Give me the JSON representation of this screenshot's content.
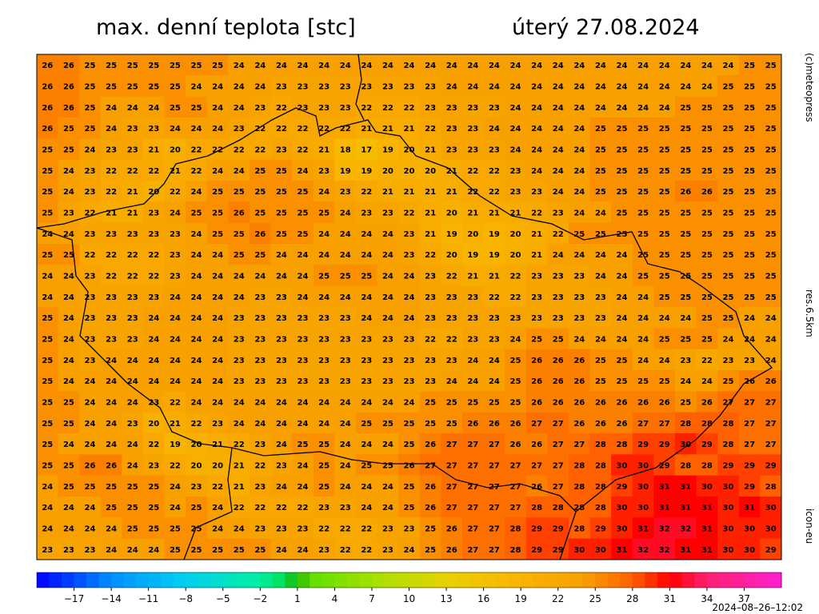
{
  "header": {
    "title": "max. denní teplota [stc]",
    "date": "úterý 27.08.2024"
  },
  "side_labels": [
    "(c)meteopress",
    "res.6.5km",
    "icon-eu"
  ],
  "timestamp": "2024–08–26–12:02",
  "legend": {
    "range": [
      -20,
      40
    ],
    "stops": [
      [
        -20,
        "#0000ff"
      ],
      [
        -14,
        "#0090ff"
      ],
      [
        -8,
        "#00d0f0"
      ],
      [
        -2,
        "#00f0a0"
      ],
      [
        0,
        "#00e050"
      ],
      [
        1,
        "#20b000"
      ],
      [
        2,
        "#60e000"
      ],
      [
        8,
        "#b0e000"
      ],
      [
        13,
        "#e8d000"
      ],
      [
        18,
        "#f8b800"
      ],
      [
        24,
        "#f8a000"
      ],
      [
        28,
        "#ff6000"
      ],
      [
        31,
        "#ff0000"
      ],
      [
        34,
        "#ff2070"
      ],
      [
        40,
        "#ff20d0"
      ]
    ],
    "ticks": [
      {
        "value": -17,
        "label": "−17"
      },
      {
        "value": -14,
        "label": "−14"
      },
      {
        "value": -11,
        "label": "−11"
      },
      {
        "value": -8,
        "label": "−8"
      },
      {
        "value": -5,
        "label": "−5"
      },
      {
        "value": -2,
        "label": "−2"
      },
      1,
      4,
      7,
      10,
      13,
      16,
      19,
      22,
      25,
      28,
      31,
      34,
      37
    ]
  },
  "grid": {
    "rows": [
      [
        26,
        26,
        25,
        25,
        25,
        25,
        25,
        25,
        25,
        24,
        24,
        24,
        24,
        24,
        24,
        24,
        24,
        24,
        24,
        24,
        24,
        24,
        24,
        24,
        24,
        24,
        24,
        24,
        24,
        24,
        24,
        24,
        24,
        25,
        25
      ],
      [
        26,
        26,
        25,
        25,
        25,
        25,
        25,
        24,
        24,
        24,
        24,
        23,
        23,
        23,
        23,
        23,
        23,
        23,
        23,
        24,
        24,
        24,
        24,
        24,
        24,
        24,
        24,
        24,
        24,
        24,
        24,
        24,
        25,
        25,
        25
      ],
      [
        26,
        26,
        25,
        24,
        24,
        24,
        25,
        25,
        24,
        24,
        23,
        22,
        23,
        23,
        23,
        22,
        22,
        22,
        23,
        23,
        23,
        23,
        24,
        24,
        24,
        24,
        24,
        24,
        24,
        24,
        25,
        25,
        25,
        25,
        25
      ],
      [
        26,
        25,
        25,
        24,
        23,
        23,
        24,
        24,
        24,
        23,
        22,
        22,
        22,
        22,
        22,
        21,
        21,
        21,
        22,
        23,
        23,
        24,
        24,
        24,
        24,
        24,
        25,
        25,
        25,
        25,
        25,
        25,
        25,
        25,
        25
      ],
      [
        25,
        25,
        24,
        23,
        23,
        21,
        20,
        22,
        22,
        22,
        22,
        23,
        22,
        21,
        18,
        17,
        19,
        20,
        21,
        23,
        23,
        23,
        24,
        24,
        24,
        24,
        25,
        25,
        25,
        25,
        25,
        25,
        25,
        25,
        25
      ],
      [
        25,
        24,
        23,
        22,
        22,
        22,
        21,
        22,
        24,
        24,
        25,
        25,
        24,
        23,
        19,
        19,
        20,
        20,
        20,
        21,
        22,
        22,
        23,
        24,
        24,
        24,
        25,
        25,
        25,
        25,
        25,
        25,
        25,
        25,
        25
      ],
      [
        25,
        24,
        23,
        22,
        21,
        20,
        22,
        24,
        25,
        25,
        25,
        25,
        25,
        24,
        23,
        22,
        21,
        21,
        21,
        21,
        22,
        22,
        23,
        23,
        24,
        24,
        25,
        25,
        25,
        25,
        26,
        26,
        25,
        25,
        25
      ],
      [
        25,
        23,
        22,
        21,
        21,
        23,
        24,
        25,
        25,
        26,
        25,
        25,
        25,
        25,
        24,
        23,
        23,
        22,
        21,
        20,
        21,
        21,
        21,
        22,
        23,
        24,
        24,
        25,
        25,
        25,
        25,
        25,
        25,
        25,
        25
      ],
      [
        24,
        24,
        23,
        23,
        23,
        23,
        23,
        24,
        25,
        25,
        26,
        25,
        25,
        24,
        24,
        24,
        24,
        23,
        21,
        19,
        20,
        19,
        20,
        21,
        22,
        25,
        25,
        25,
        25,
        25,
        25,
        25,
        25,
        25,
        25
      ],
      [
        25,
        25,
        22,
        22,
        22,
        22,
        23,
        24,
        24,
        25,
        25,
        24,
        24,
        24,
        24,
        24,
        24,
        23,
        22,
        20,
        19,
        19,
        20,
        21,
        24,
        24,
        24,
        24,
        25,
        25,
        25,
        25,
        25,
        25,
        25
      ],
      [
        24,
        24,
        23,
        22,
        22,
        22,
        23,
        24,
        24,
        24,
        24,
        24,
        24,
        25,
        25,
        25,
        24,
        24,
        23,
        22,
        21,
        21,
        22,
        23,
        23,
        23,
        24,
        24,
        25,
        25,
        25,
        25,
        25,
        25,
        25
      ],
      [
        24,
        24,
        23,
        23,
        23,
        23,
        24,
        24,
        24,
        24,
        23,
        23,
        24,
        24,
        24,
        24,
        24,
        24,
        23,
        23,
        23,
        22,
        22,
        23,
        23,
        23,
        23,
        24,
        24,
        25,
        25,
        25,
        25,
        25,
        25
      ],
      [
        25,
        24,
        23,
        23,
        23,
        24,
        24,
        24,
        24,
        23,
        23,
        23,
        23,
        23,
        23,
        24,
        24,
        24,
        23,
        23,
        23,
        23,
        23,
        23,
        23,
        23,
        23,
        24,
        24,
        24,
        24,
        25,
        25,
        24,
        24
      ],
      [
        25,
        24,
        23,
        23,
        23,
        24,
        24,
        24,
        24,
        23,
        23,
        23,
        23,
        23,
        23,
        23,
        23,
        23,
        22,
        22,
        23,
        23,
        24,
        25,
        25,
        24,
        24,
        24,
        24,
        25,
        25,
        25,
        24,
        24,
        24
      ],
      [
        25,
        24,
        23,
        24,
        24,
        24,
        24,
        24,
        24,
        23,
        23,
        23,
        23,
        23,
        23,
        23,
        23,
        23,
        23,
        23,
        24,
        24,
        25,
        26,
        26,
        26,
        25,
        25,
        24,
        24,
        23,
        22,
        23,
        23,
        24
      ],
      [
        25,
        24,
        24,
        24,
        24,
        24,
        24,
        24,
        24,
        23,
        23,
        23,
        23,
        23,
        23,
        23,
        23,
        23,
        23,
        24,
        24,
        24,
        25,
        26,
        26,
        26,
        25,
        25,
        25,
        25,
        24,
        24,
        25,
        26,
        26
      ],
      [
        25,
        25,
        24,
        24,
        24,
        23,
        22,
        24,
        24,
        24,
        24,
        24,
        24,
        24,
        24,
        24,
        24,
        24,
        25,
        25,
        25,
        25,
        25,
        26,
        26,
        26,
        26,
        26,
        26,
        26,
        25,
        26,
        27,
        27,
        27
      ],
      [
        25,
        25,
        24,
        24,
        23,
        20,
        21,
        22,
        23,
        24,
        24,
        24,
        24,
        24,
        24,
        25,
        25,
        25,
        25,
        25,
        26,
        26,
        26,
        27,
        27,
        26,
        26,
        26,
        27,
        27,
        28,
        28,
        28,
        27,
        27
      ],
      [
        25,
        24,
        24,
        24,
        24,
        22,
        19,
        20,
        21,
        22,
        23,
        24,
        25,
        25,
        24,
        24,
        24,
        25,
        26,
        27,
        27,
        27,
        26,
        26,
        27,
        27,
        28,
        28,
        29,
        29,
        30,
        29,
        28,
        27,
        27
      ],
      [
        25,
        25,
        26,
        26,
        24,
        23,
        22,
        20,
        20,
        21,
        22,
        23,
        24,
        25,
        24,
        25,
        25,
        26,
        27,
        27,
        27,
        27,
        27,
        27,
        27,
        28,
        28,
        30,
        30,
        29,
        28,
        28,
        29,
        29,
        29
      ],
      [
        24,
        25,
        25,
        25,
        25,
        25,
        24,
        23,
        22,
        21,
        23,
        24,
        24,
        25,
        24,
        24,
        24,
        25,
        26,
        27,
        27,
        27,
        27,
        26,
        27,
        28,
        28,
        29,
        30,
        31,
        31,
        30,
        30,
        29,
        28
      ],
      [
        24,
        24,
        24,
        25,
        25,
        25,
        24,
        25,
        24,
        22,
        22,
        22,
        22,
        23,
        23,
        24,
        24,
        25,
        26,
        27,
        27,
        27,
        27,
        28,
        28,
        28,
        28,
        30,
        30,
        31,
        31,
        31,
        30,
        31,
        30
      ],
      [
        24,
        24,
        24,
        24,
        25,
        25,
        25,
        25,
        24,
        24,
        23,
        23,
        23,
        22,
        22,
        22,
        23,
        23,
        25,
        26,
        27,
        27,
        28,
        29,
        29,
        28,
        29,
        30,
        31,
        32,
        32,
        31,
        30,
        30,
        30
      ],
      [
        23,
        23,
        23,
        24,
        24,
        24,
        25,
        25,
        25,
        25,
        25,
        24,
        24,
        23,
        22,
        22,
        23,
        24,
        25,
        26,
        27,
        27,
        28,
        29,
        29,
        30,
        30,
        31,
        32,
        32,
        31,
        31,
        30,
        30,
        29
      ]
    ]
  }
}
